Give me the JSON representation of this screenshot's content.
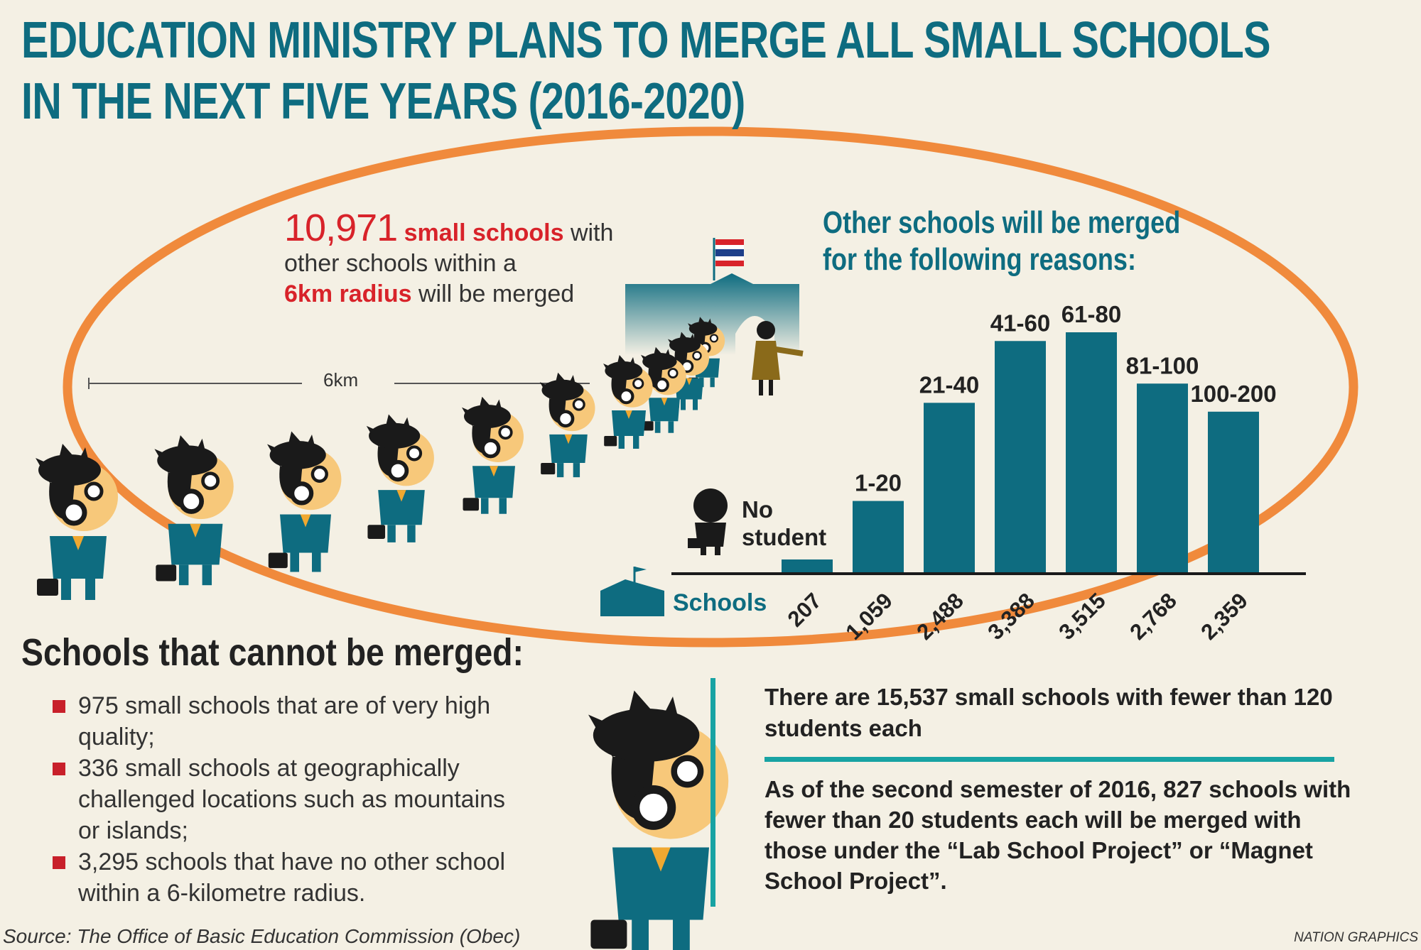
{
  "title": {
    "line1": "EDUCATION MINISTRY PLANS TO MERGE ALL SMALL SCHOOLS",
    "line2": "IN THE NEXT FIVE YEARS (2016-2020)"
  },
  "intro": {
    "count": "10,971",
    "small_schools": "small schools",
    "with": " with",
    "line2": "other schools within a",
    "radius": "6km radius",
    "tail": " will be merged"
  },
  "distance_label": "6km",
  "chart_heading": {
    "line1": "Other schools will be merged",
    "line2": "for the following reasons:"
  },
  "no_student_label": {
    "line1": "No",
    "line2": "student"
  },
  "schools_axis_label": "Schools",
  "chart_data": {
    "type": "bar",
    "title": "Other schools will be merged for the following reasons:",
    "categories": [
      "No student",
      "1-20",
      "21-40",
      "41-60",
      "61-80",
      "81-100",
      "100-200"
    ],
    "values": [
      207,
      1059,
      2488,
      3388,
      3515,
      2768,
      2359
    ],
    "value_labels": [
      "207",
      "1,059",
      "2,488",
      "3,388",
      "3,515",
      "2,768",
      "2,359"
    ],
    "ylim": [
      0,
      3700
    ],
    "bar_color": "#0e6c80"
  },
  "cannot_merge": {
    "heading": "Schools that cannot be merged:",
    "items": [
      "975 small schools that are of very high quality;",
      "336 small schools at geographically challenged locations such as mountains or islands;",
      "3,295 schools that have no other school within a 6-kilometre radius."
    ]
  },
  "facts": {
    "fact1": "There are 15,537 small schools with fewer than 120 students each",
    "fact2": "As of the second semester of 2016, 827 schools with fewer than 20 students each will be merged with those under the “Lab School Project” or “Magnet School Project”."
  },
  "source": "Source: The Office of Basic Education Commission (Obec)",
  "credit": "NATION GRAPHICS",
  "colors": {
    "teal": "#0e6c80",
    "accent_red": "#d8232a",
    "orange_ring": "#f08a3c",
    "divider": "#18a3a3",
    "background": "#f4f0e4"
  }
}
